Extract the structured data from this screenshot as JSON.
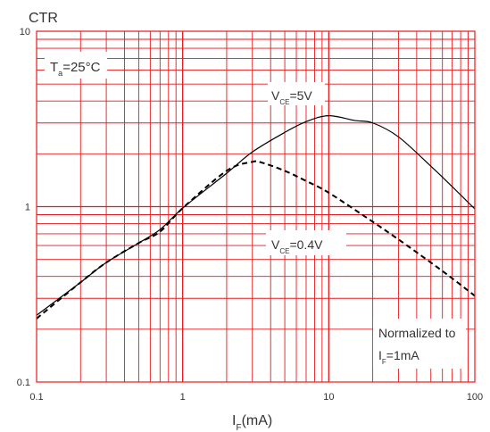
{
  "chart_data": {
    "type": "line",
    "x_scale": "log",
    "y_scale": "log",
    "xlim": [
      0.1,
      100
    ],
    "ylim": [
      0.1,
      10
    ],
    "x_ticks": [
      0.1,
      1,
      10,
      100
    ],
    "x_tick_labels": [
      "0.1",
      "1",
      "10",
      "100"
    ],
    "y_ticks": [
      0.1,
      1,
      10
    ],
    "y_tick_labels": [
      "0.1",
      "1",
      "10"
    ],
    "ylabel": "CTR",
    "xlabel": {
      "main": "I",
      "sub": "F",
      "rest": "(mA)"
    },
    "grid": true,
    "grid_color": "#e8191c",
    "line_color": "#000000",
    "series": [
      {
        "label": {
          "main": "V",
          "sub": "CE",
          "rest": "=5V"
        },
        "style": "solid",
        "x": [
          0.1,
          0.2,
          0.3,
          0.5,
          0.7,
          1,
          2,
          3,
          5,
          7,
          10,
          15,
          20,
          30,
          50,
          70,
          100
        ],
        "y": [
          0.24,
          0.37,
          0.48,
          0.62,
          0.74,
          0.98,
          1.55,
          2.05,
          2.65,
          3.05,
          3.3,
          3.1,
          3.0,
          2.5,
          1.7,
          1.3,
          0.97
        ]
      },
      {
        "label": {
          "main": "V",
          "sub": "CE",
          "rest": "=0.4V"
        },
        "style": "dashed",
        "x": [
          0.1,
          0.2,
          0.3,
          0.5,
          0.7,
          1,
          2,
          3,
          3.5,
          5,
          7,
          10,
          20,
          30,
          50,
          70,
          100
        ],
        "y": [
          0.23,
          0.37,
          0.48,
          0.62,
          0.72,
          0.98,
          1.6,
          1.8,
          1.78,
          1.6,
          1.4,
          1.2,
          0.82,
          0.65,
          0.48,
          0.39,
          0.31
        ]
      }
    ],
    "annotations": {
      "temperature": {
        "main": "T",
        "sub": "a",
        "rest": "=25°C"
      },
      "normalized_line1": "Normalized to",
      "normalized_line2": {
        "main": "I",
        "sub": "F",
        "rest": "=1mA"
      }
    }
  }
}
